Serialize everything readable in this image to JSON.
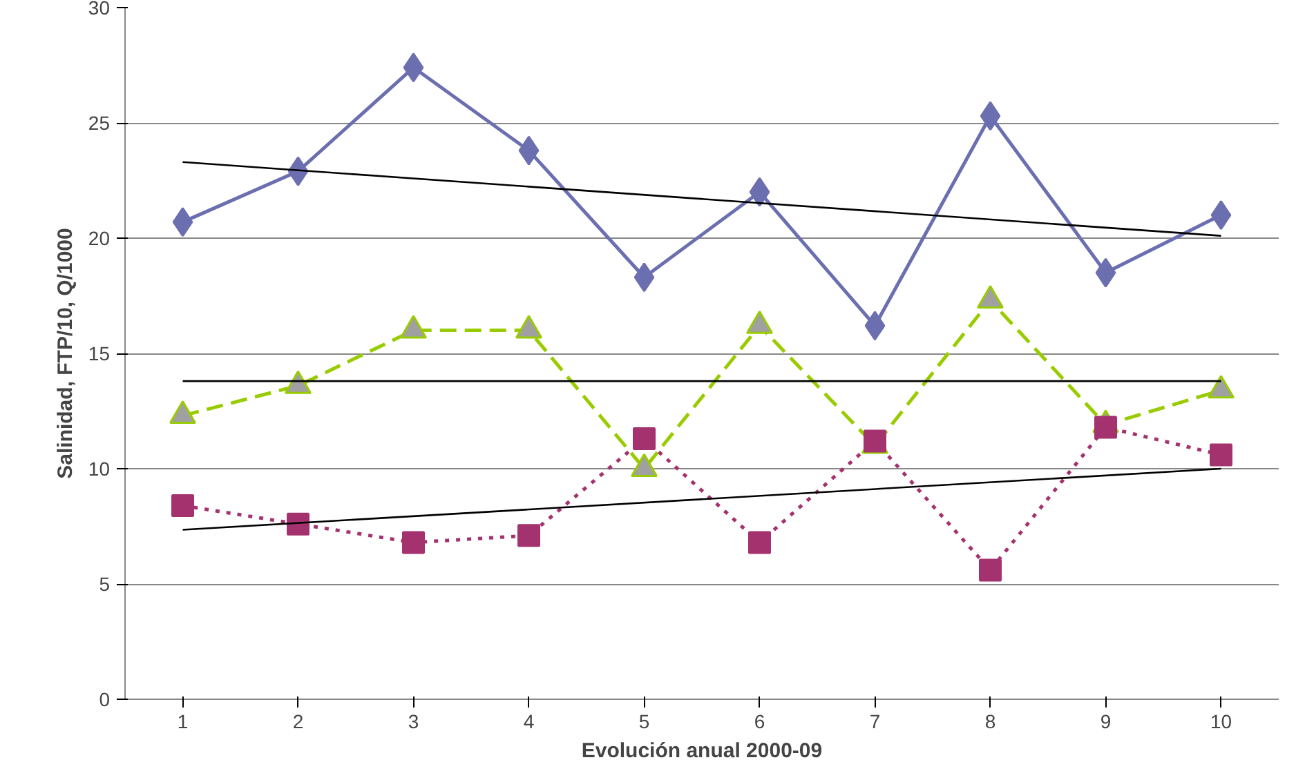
{
  "chart_data": {
    "type": "line",
    "xlabel": "Evolución anual 2000-09",
    "ylabel": "Salinidad, FTP/10, Q/1000",
    "categories": [
      "1",
      "2",
      "3",
      "4",
      "5",
      "6",
      "7",
      "8",
      "9",
      "10"
    ],
    "ylim": [
      0,
      30
    ],
    "yticks": [
      0,
      5,
      10,
      15,
      20,
      25,
      30
    ],
    "grid": "y",
    "series": [
      {
        "color": "#6b6fb0",
        "marker": "diamond",
        "line_style": "solid",
        "values": [
          20.7,
          22.9,
          27.4,
          23.8,
          18.3,
          22.0,
          16.2,
          25.3,
          18.5,
          21.0
        ]
      },
      {
        "color": "#99cc00",
        "marker": "triangle",
        "line_style": "dashed",
        "values": [
          12.3,
          13.6,
          16.0,
          16.0,
          10.0,
          16.2,
          11.0,
          17.3,
          11.9,
          13.4
        ]
      },
      {
        "color": "#a3326e",
        "marker": "square",
        "line_style": "dotted",
        "values": [
          8.4,
          7.6,
          6.8,
          7.1,
          11.3,
          6.8,
          11.2,
          5.6,
          11.8,
          10.6
        ]
      },
      {
        "color": "#000000",
        "marker": "none",
        "line_style": "solid",
        "x": [
          "1",
          "10"
        ],
        "values": [
          23.3,
          20.1
        ]
      },
      {
        "color": "#000000",
        "marker": "none",
        "line_style": "solid",
        "x": [
          "1",
          "10"
        ],
        "values": [
          13.8,
          13.8
        ]
      },
      {
        "color": "#000000",
        "marker": "none",
        "line_style": "solid",
        "x": [
          "1",
          "10"
        ],
        "values": [
          7.35,
          10.0
        ]
      }
    ]
  }
}
